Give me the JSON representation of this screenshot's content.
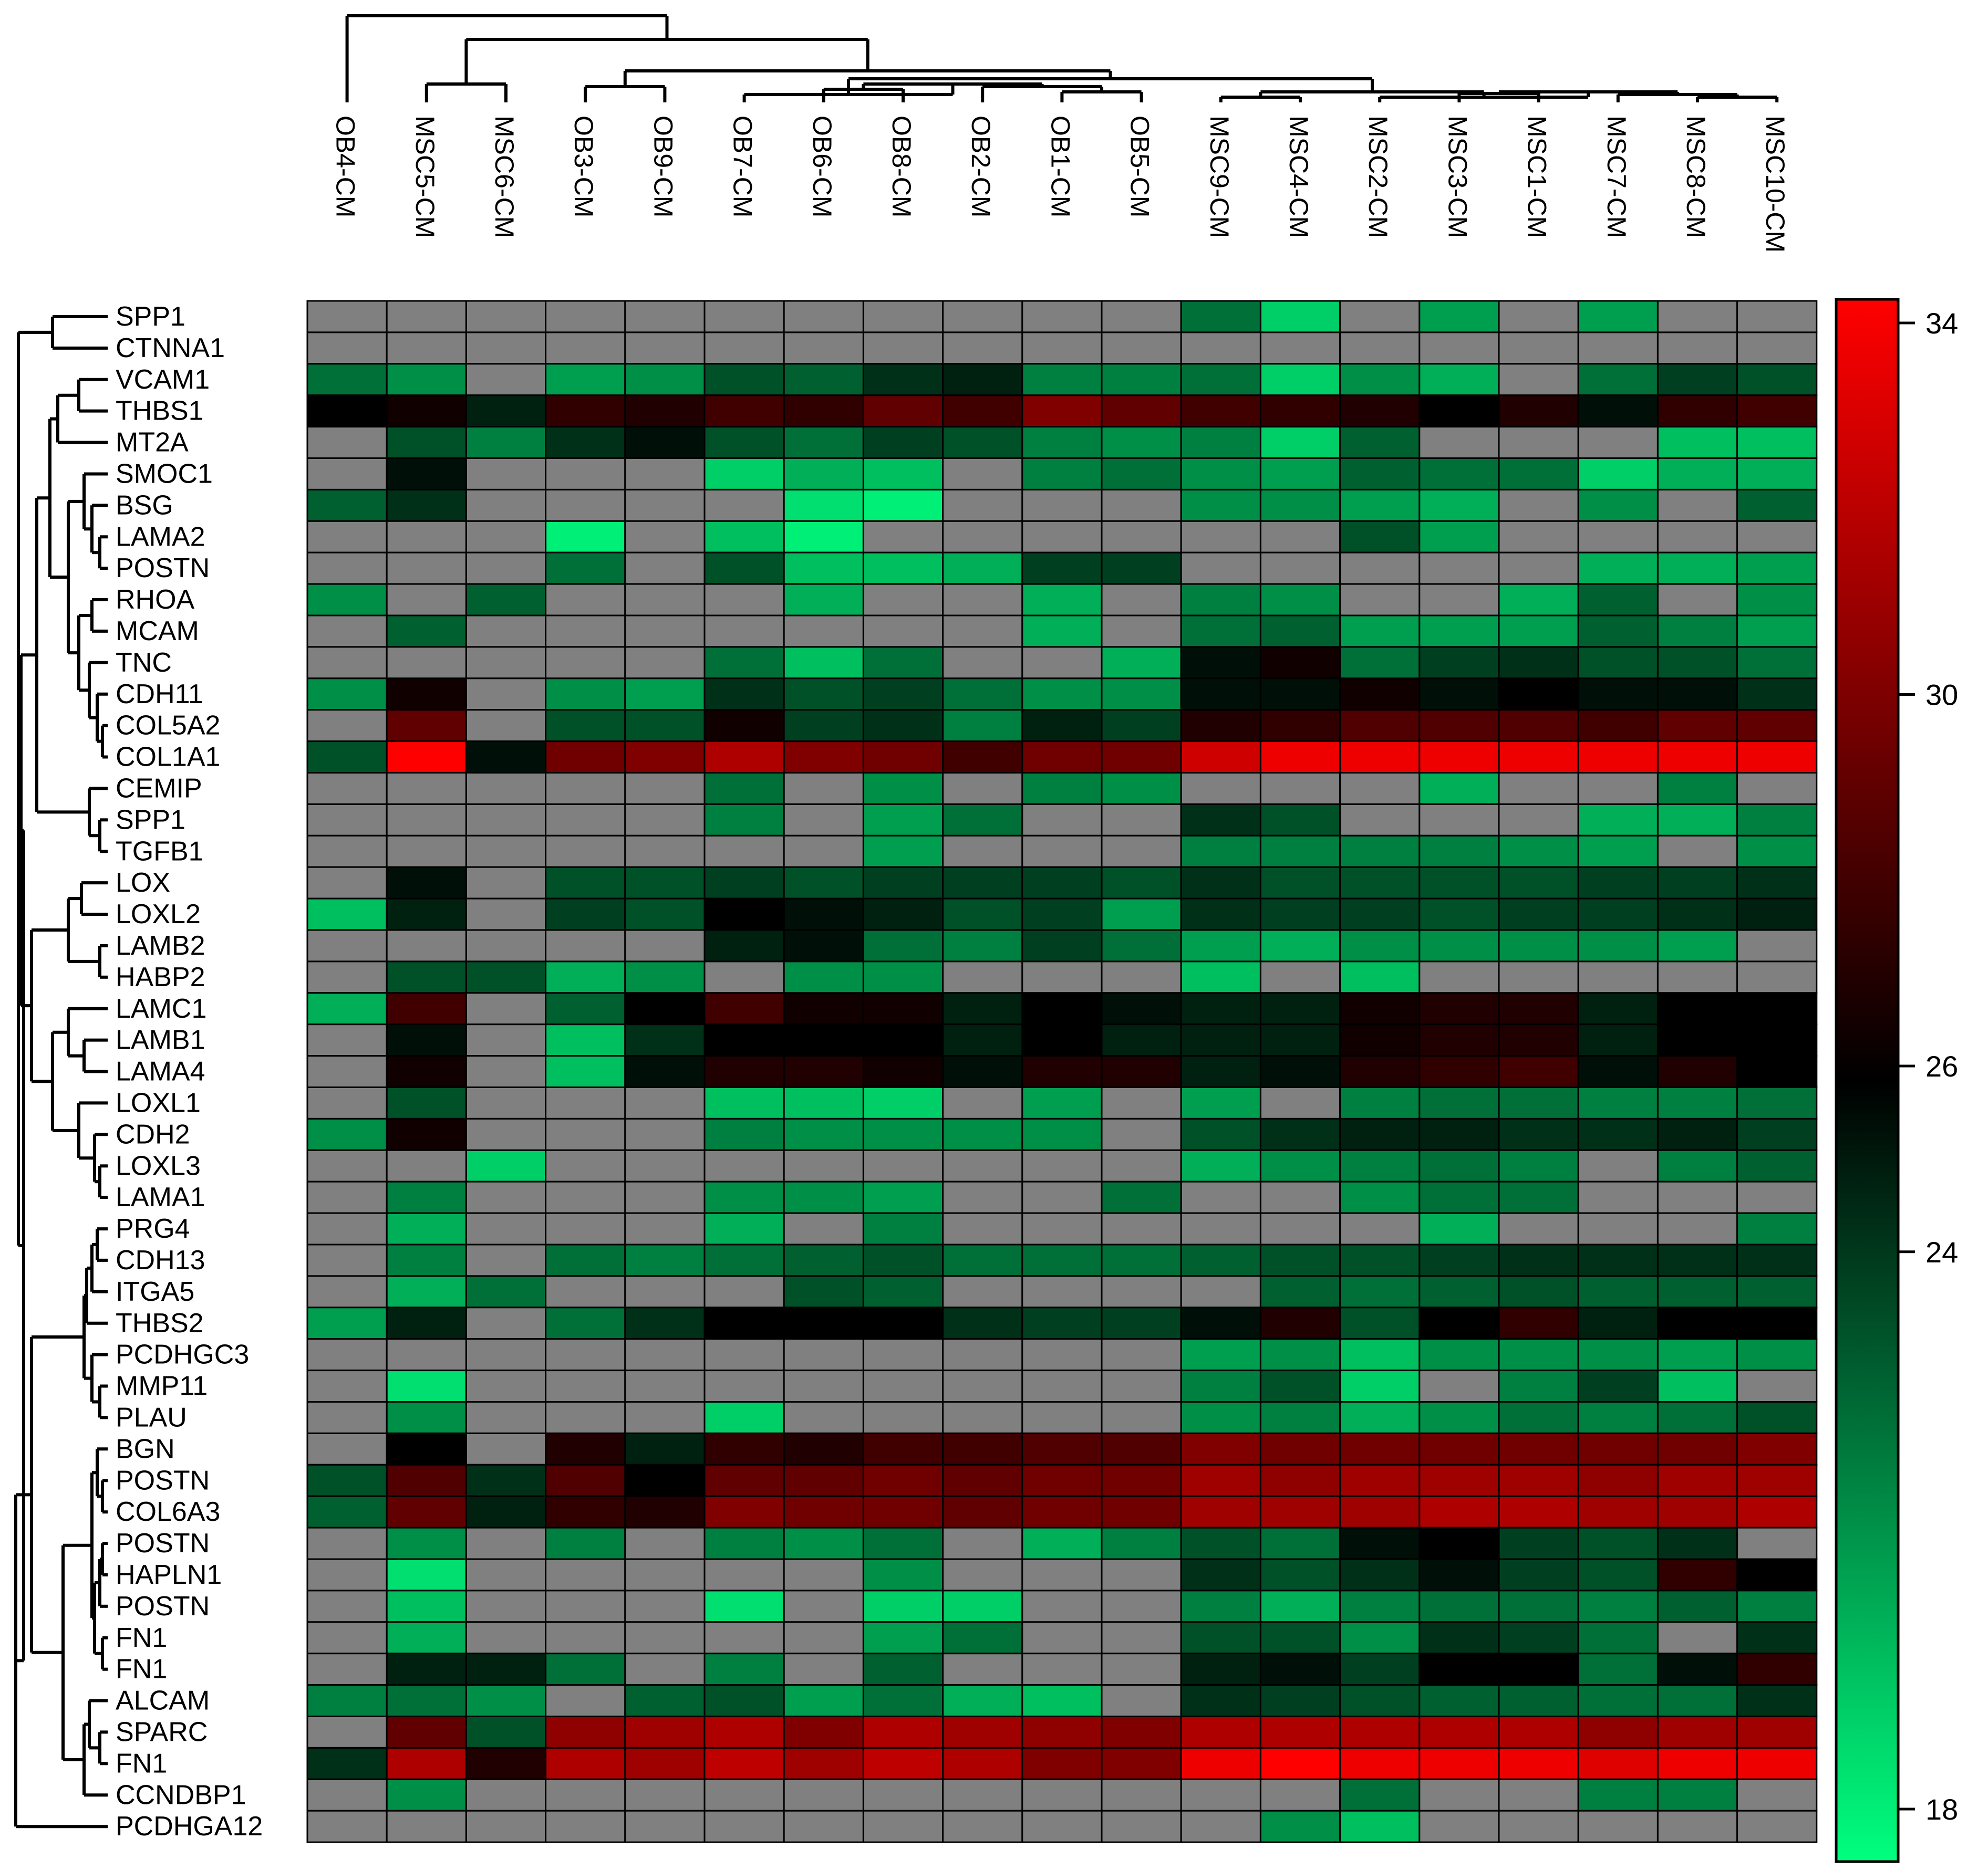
{
  "chart_data": {
    "type": "heatmap",
    "title": "",
    "xlabel": "",
    "ylabel": "",
    "columns": [
      "OB4-CM",
      "MSC5-CM",
      "MSC6-CM",
      "OB3-CM",
      "OB9-CM",
      "OB7-CM",
      "OB6-CM",
      "OB8-CM",
      "OB2-CM",
      "OB1-CM",
      "OB5-CM",
      "MSC9-CM",
      "MSC4-CM",
      "MSC2-CM",
      "MSC3-CM",
      "MSC1-CM",
      "MSC7-CM",
      "MSC8-CM",
      "MSC10-CM"
    ],
    "rows": [
      "SPP1",
      "CTNNA1",
      "VCAM1",
      "THBS1",
      "MT2A",
      "SMOC1",
      "BSG",
      "LAMA2",
      "POSTN",
      "RHOA",
      "MCAM",
      "TNC",
      "CDH11",
      "COL5A2",
      "COL1A1",
      "CEMIP",
      "SPP1",
      "TGFB1",
      "LOX",
      "LOXL2",
      "LAMB2",
      "HABP2",
      "LAMC1",
      "LAMB1",
      "LAMA4",
      "LOXL1",
      "CDH2",
      "LOXL3",
      "LAMA1",
      "PRG4",
      "CDH13",
      "ITGA5",
      "THBS2",
      "PCDHGC3",
      "MMP11",
      "PLAU",
      "BGN",
      "POSTN",
      "COL6A3",
      "POSTN",
      "HAPLN1",
      "POSTN",
      "FN1",
      "FN1",
      "ALCAM",
      "SPARC",
      "FN1",
      "CCNDBP1",
      "PCDHGA12"
    ],
    "missing_value_note": null,
    "values": [
      [
        null,
        null,
        null,
        null,
        null,
        null,
        null,
        null,
        null,
        null,
        null,
        22.5,
        19.5,
        null,
        21.0,
        null,
        21.0,
        null,
        null
      ],
      [
        null,
        null,
        null,
        null,
        null,
        null,
        null,
        null,
        null,
        null,
        null,
        null,
        null,
        null,
        null,
        null,
        null,
        null,
        null
      ],
      [
        22.5,
        21.5,
        null,
        21.0,
        21.5,
        23.5,
        23.0,
        24.5,
        25.0,
        22.0,
        22.0,
        22.5,
        19.5,
        21.5,
        20.5,
        null,
        22.5,
        24.0,
        23.5
      ],
      [
        26.0,
        26.5,
        25.0,
        27.5,
        27.0,
        28.0,
        27.5,
        29.0,
        28.0,
        30.0,
        29.0,
        28.0,
        27.5,
        27.0,
        26.0,
        27.0,
        25.5,
        27.5,
        28.0
      ],
      [
        null,
        23.5,
        22.0,
        24.5,
        25.5,
        23.5,
        22.5,
        24.0,
        23.5,
        22.0,
        21.5,
        22.0,
        19.5,
        23.0,
        null,
        null,
        null,
        20.0,
        20.0
      ],
      [
        null,
        25.5,
        null,
        null,
        null,
        19.5,
        20.5,
        20.0,
        null,
        22.0,
        22.5,
        21.5,
        21.0,
        23.0,
        22.5,
        22.5,
        19.5,
        20.5,
        20.5
      ],
      [
        23.0,
        24.5,
        null,
        null,
        null,
        null,
        19.0,
        18.5,
        null,
        null,
        null,
        21.5,
        21.5,
        21.0,
        20.5,
        null,
        21.5,
        null,
        23.0
      ],
      [
        null,
        null,
        null,
        18.5,
        null,
        20.0,
        18.5,
        null,
        null,
        null,
        null,
        null,
        null,
        23.5,
        21.0,
        null,
        null,
        null,
        null
      ],
      [
        null,
        null,
        null,
        22.5,
        null,
        23.5,
        20.0,
        20.0,
        20.5,
        24.0,
        24.0,
        null,
        null,
        null,
        null,
        null,
        20.5,
        20.5,
        21.0
      ],
      [
        21.5,
        null,
        23.0,
        null,
        null,
        null,
        20.5,
        null,
        null,
        20.5,
        null,
        22.0,
        21.5,
        null,
        null,
        20.5,
        23.0,
        null,
        21.5
      ],
      [
        null,
        23.0,
        null,
        null,
        null,
        null,
        null,
        null,
        null,
        20.5,
        null,
        22.5,
        23.0,
        21.0,
        21.0,
        21.0,
        23.0,
        22.0,
        21.0
      ],
      [
        null,
        null,
        null,
        null,
        null,
        22.5,
        20.0,
        22.5,
        null,
        null,
        20.5,
        25.5,
        26.5,
        22.5,
        24.0,
        24.5,
        23.5,
        23.5,
        22.5
      ],
      [
        21.5,
        26.5,
        null,
        21.5,
        21.0,
        24.5,
        23.5,
        24.0,
        22.5,
        21.5,
        21.5,
        25.5,
        25.5,
        26.5,
        25.5,
        26.0,
        25.5,
        25.5,
        24.5
      ],
      [
        null,
        29.0,
        null,
        23.5,
        23.5,
        26.5,
        24.0,
        24.5,
        22.0,
        25.0,
        24.0,
        27.0,
        27.5,
        28.5,
        28.5,
        28.5,
        28.0,
        29.0,
        29.0
      ],
      [
        23.5,
        34.0,
        25.5,
        29.5,
        30.0,
        31.5,
        30.0,
        29.5,
        28.0,
        29.5,
        29.5,
        32.5,
        33.5,
        33.5,
        33.5,
        33.5,
        33.5,
        33.5,
        33.5
      ],
      [
        null,
        null,
        null,
        null,
        null,
        22.5,
        null,
        21.5,
        null,
        22.0,
        21.5,
        null,
        null,
        null,
        20.5,
        null,
        null,
        22.0,
        null
      ],
      [
        null,
        null,
        null,
        null,
        null,
        22.0,
        null,
        21.0,
        22.5,
        null,
        null,
        24.5,
        23.5,
        null,
        null,
        null,
        20.5,
        20.5,
        22.0
      ],
      [
        null,
        null,
        null,
        null,
        null,
        null,
        null,
        21.0,
        null,
        null,
        null,
        22.0,
        22.0,
        22.0,
        22.0,
        21.5,
        21.0,
        null,
        21.5
      ],
      [
        null,
        25.5,
        null,
        23.5,
        23.5,
        24.0,
        23.5,
        24.0,
        24.0,
        24.0,
        23.5,
        24.5,
        23.5,
        23.5,
        23.5,
        23.5,
        24.0,
        24.0,
        24.5
      ],
      [
        20.0,
        25.0,
        null,
        24.0,
        23.5,
        26.0,
        25.5,
        25.0,
        23.5,
        24.0,
        21.0,
        24.5,
        24.0,
        24.0,
        23.5,
        24.0,
        24.0,
        24.5,
        25.0
      ],
      [
        null,
        null,
        null,
        null,
        null,
        25.0,
        25.5,
        22.5,
        22.0,
        24.0,
        22.5,
        21.0,
        20.5,
        21.5,
        21.5,
        21.5,
        21.5,
        21.0,
        null
      ],
      [
        null,
        23.5,
        23.5,
        20.5,
        21.5,
        null,
        21.5,
        21.5,
        null,
        null,
        null,
        20.0,
        null,
        20.0,
        null,
        null,
        null,
        null,
        null
      ],
      [
        20.5,
        28.0,
        null,
        23.0,
        26.0,
        28.0,
        26.5,
        26.5,
        25.0,
        26.0,
        25.5,
        25.0,
        25.0,
        26.5,
        27.0,
        27.0,
        25.0,
        26.0,
        26.0
      ],
      [
        null,
        25.5,
        null,
        20.0,
        24.5,
        26.0,
        26.0,
        26.0,
        25.0,
        26.0,
        25.0,
        25.0,
        25.0,
        26.5,
        27.0,
        27.0,
        25.0,
        26.0,
        26.0
      ],
      [
        null,
        26.5,
        null,
        20.0,
        25.5,
        27.0,
        27.0,
        26.5,
        25.5,
        27.0,
        27.0,
        25.0,
        25.5,
        27.0,
        27.5,
        28.0,
        25.5,
        27.0,
        26.0
      ],
      [
        null,
        23.5,
        null,
        null,
        null,
        20.0,
        20.0,
        19.5,
        null,
        21.0,
        null,
        21.0,
        null,
        22.0,
        22.5,
        22.5,
        22.0,
        22.0,
        22.5
      ],
      [
        21.5,
        26.5,
        null,
        null,
        null,
        22.0,
        21.5,
        21.5,
        21.5,
        21.5,
        null,
        23.5,
        24.5,
        25.0,
        25.0,
        24.5,
        24.5,
        25.0,
        24.0
      ],
      [
        null,
        null,
        19.5,
        null,
        null,
        null,
        null,
        null,
        null,
        null,
        null,
        20.5,
        21.5,
        22.0,
        22.5,
        22.0,
        null,
        22.0,
        23.0
      ],
      [
        null,
        22.0,
        null,
        null,
        null,
        21.5,
        21.5,
        21.0,
        null,
        null,
        22.5,
        null,
        null,
        21.5,
        22.5,
        22.5,
        null,
        null,
        null
      ],
      [
        null,
        20.5,
        null,
        null,
        null,
        20.5,
        null,
        22.0,
        null,
        null,
        null,
        null,
        null,
        null,
        20.5,
        null,
        null,
        null,
        22.0
      ],
      [
        null,
        22.0,
        null,
        22.5,
        22.0,
        22.5,
        23.0,
        23.5,
        22.5,
        22.5,
        22.5,
        23.0,
        23.5,
        23.5,
        24.0,
        24.5,
        24.5,
        24.5,
        24.5
      ],
      [
        null,
        20.5,
        22.5,
        null,
        null,
        null,
        23.5,
        23.0,
        null,
        null,
        null,
        null,
        23.0,
        22.5,
        23.0,
        23.5,
        23.0,
        23.0,
        23.0
      ],
      [
        21.0,
        25.0,
        null,
        22.5,
        24.5,
        26.0,
        26.0,
        26.0,
        24.5,
        24.0,
        24.0,
        25.5,
        27.0,
        23.5,
        26.0,
        27.5,
        25.0,
        26.0,
        26.0
      ],
      [
        null,
        null,
        null,
        null,
        null,
        null,
        null,
        null,
        null,
        null,
        null,
        21.0,
        21.5,
        20.0,
        21.5,
        21.5,
        21.5,
        21.0,
        21.5
      ],
      [
        null,
        19.0,
        null,
        null,
        null,
        null,
        null,
        null,
        null,
        null,
        null,
        22.0,
        23.5,
        19.5,
        null,
        22.0,
        24.0,
        20.0,
        null
      ],
      [
        null,
        21.5,
        null,
        null,
        null,
        19.5,
        null,
        null,
        null,
        null,
        null,
        21.5,
        22.0,
        20.5,
        21.5,
        22.5,
        22.0,
        22.5,
        23.5
      ],
      [
        null,
        26.0,
        null,
        27.0,
        25.0,
        27.5,
        27.0,
        28.0,
        28.0,
        28.5,
        28.5,
        30.0,
        29.5,
        29.5,
        29.5,
        29.5,
        29.5,
        29.5,
        30.0
      ],
      [
        23.5,
        28.5,
        24.5,
        28.5,
        26.0,
        29.0,
        29.0,
        29.5,
        29.0,
        29.5,
        29.5,
        31.0,
        30.5,
        31.0,
        31.0,
        31.0,
        30.5,
        31.0,
        31.0
      ],
      [
        23.0,
        29.0,
        25.0,
        27.5,
        27.0,
        30.0,
        29.5,
        29.5,
        29.0,
        29.5,
        29.5,
        31.0,
        31.0,
        31.0,
        31.5,
        31.5,
        31.0,
        31.0,
        31.5
      ],
      [
        null,
        21.5,
        null,
        22.0,
        null,
        22.0,
        21.5,
        22.5,
        null,
        20.5,
        22.0,
        23.5,
        22.5,
        25.5,
        26.0,
        24.0,
        23.5,
        24.5,
        null
      ],
      [
        null,
        19.0,
        null,
        null,
        null,
        null,
        null,
        21.5,
        null,
        null,
        null,
        24.5,
        23.5,
        24.5,
        25.5,
        24.0,
        23.5,
        27.5,
        26.0
      ],
      [
        null,
        20.0,
        null,
        null,
        null,
        19.0,
        null,
        19.5,
        19.5,
        null,
        null,
        22.0,
        20.5,
        22.0,
        22.5,
        22.5,
        22.0,
        23.0,
        22.0
      ],
      [
        null,
        20.5,
        null,
        null,
        null,
        null,
        null,
        21.0,
        22.5,
        null,
        null,
        23.5,
        23.5,
        21.5,
        24.5,
        24.0,
        22.5,
        null,
        24.5
      ],
      [
        null,
        25.0,
        25.0,
        22.5,
        null,
        22.0,
        null,
        23.0,
        null,
        null,
        null,
        25.0,
        25.5,
        24.0,
        26.0,
        26.0,
        22.5,
        25.5,
        27.5
      ],
      [
        22.0,
        22.5,
        21.5,
        null,
        23.0,
        23.5,
        21.0,
        22.5,
        20.5,
        20.0,
        null,
        24.5,
        24.0,
        23.5,
        23.0,
        23.0,
        22.5,
        22.5,
        24.5
      ],
      [
        null,
        29.0,
        23.5,
        30.5,
        31.0,
        31.5,
        30.0,
        31.5,
        31.0,
        30.5,
        30.0,
        31.5,
        31.5,
        31.5,
        31.5,
        31.5,
        30.5,
        31.0,
        31.0
      ],
      [
        24.5,
        31.5,
        27.0,
        31.5,
        31.0,
        32.0,
        31.0,
        32.0,
        31.5,
        30.0,
        30.0,
        33.5,
        34.0,
        33.5,
        33.5,
        33.5,
        33.0,
        33.5,
        33.5
      ],
      [
        null,
        21.5,
        null,
        null,
        null,
        null,
        null,
        null,
        null,
        null,
        null,
        null,
        null,
        22.5,
        null,
        null,
        22.0,
        22.0,
        null
      ],
      [
        null,
        null,
        null,
        null,
        null,
        null,
        null,
        null,
        null,
        null,
        null,
        null,
        21.5,
        20.0,
        null,
        null,
        null,
        null,
        null
      ]
    ],
    "missing_color": "#808080",
    "colorbar": {
      "ticks": [
        34,
        30,
        26,
        24,
        18
      ],
      "colors_high_to_low": [
        "#ff0000",
        "#000000",
        "#00ff7f"
      ]
    },
    "dendrograms": {
      "columns": true,
      "rows": true
    }
  }
}
